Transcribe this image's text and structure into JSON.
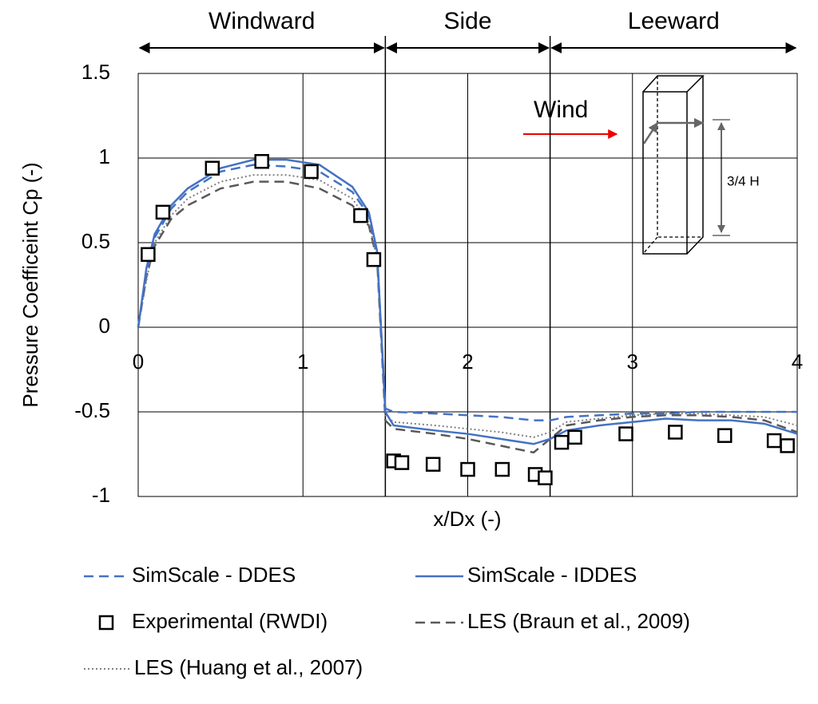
{
  "chart_data": {
    "type": "line",
    "xlabel": "x/Dx (-)",
    "ylabel": "Pressure Coefficeint Cp (-)",
    "xlim": [
      0,
      4
    ],
    "ylim": [
      -1,
      1.5
    ],
    "xticks": [
      0,
      1,
      2,
      3,
      4
    ],
    "yticks": [
      -1,
      -0.5,
      0,
      0.5,
      1,
      1.5
    ],
    "grid": true,
    "regions": [
      {
        "label": "Windward",
        "from": 0,
        "to": 1.5
      },
      {
        "label": "Side",
        "from": 1.5,
        "to": 2.5
      },
      {
        "label": "Leeward",
        "from": 2.5,
        "to": 4
      }
    ],
    "annotations": {
      "wind": "Wind",
      "height": "3/4 H"
    },
    "series": [
      {
        "name": "SimScale - DDES",
        "color": "#4472c4",
        "line_style": "dashed",
        "x": [
          0,
          0.05,
          0.1,
          0.2,
          0.3,
          0.5,
          0.7,
          0.9,
          1.1,
          1.3,
          1.4,
          1.45,
          1.5,
          1.55,
          1.8,
          2.0,
          2.2,
          2.4,
          2.5,
          2.6,
          2.8,
          3.0,
          3.2,
          3.4,
          3.6,
          3.8,
          4.0
        ],
        "values": [
          0.0,
          0.33,
          0.53,
          0.7,
          0.8,
          0.92,
          0.96,
          0.95,
          0.92,
          0.8,
          0.66,
          0.43,
          -0.48,
          -0.5,
          -0.51,
          -0.52,
          -0.53,
          -0.55,
          -0.55,
          -0.53,
          -0.52,
          -0.51,
          -0.51,
          -0.5,
          -0.5,
          -0.5,
          -0.5
        ]
      },
      {
        "name": "SimScale - IDDES",
        "color": "#4472c4",
        "line_style": "solid",
        "x": [
          0,
          0.05,
          0.1,
          0.2,
          0.3,
          0.5,
          0.7,
          0.9,
          1.1,
          1.3,
          1.4,
          1.45,
          1.5,
          1.55,
          1.8,
          2.0,
          2.2,
          2.4,
          2.5,
          2.6,
          2.8,
          3.0,
          3.2,
          3.4,
          3.6,
          3.8,
          4.0
        ],
        "values": [
          0.0,
          0.35,
          0.55,
          0.72,
          0.82,
          0.94,
          0.99,
          0.99,
          0.96,
          0.83,
          0.68,
          0.45,
          -0.5,
          -0.58,
          -0.61,
          -0.63,
          -0.66,
          -0.69,
          -0.66,
          -0.61,
          -0.58,
          -0.56,
          -0.54,
          -0.55,
          -0.55,
          -0.57,
          -0.63
        ]
      },
      {
        "name": "Experimental (RWDI)",
        "color": "#000000",
        "line_style": "none",
        "marker": "square",
        "x": [
          0.06,
          0.15,
          0.45,
          0.75,
          1.05,
          1.35,
          1.43,
          1.55,
          1.6,
          1.79,
          2.0,
          2.21,
          2.41,
          2.47,
          2.57,
          2.65,
          2.96,
          3.26,
          3.56,
          3.86,
          3.94
        ],
        "values": [
          0.43,
          0.68,
          0.94,
          0.98,
          0.92,
          0.66,
          0.4,
          -0.79,
          -0.8,
          -0.81,
          -0.84,
          -0.84,
          -0.87,
          -0.89,
          -0.68,
          -0.65,
          -0.63,
          -0.62,
          -0.64,
          -0.67,
          -0.7
        ]
      },
      {
        "name": "LES (Braun et al., 2009)",
        "color": "#595959",
        "line_style": "dashed",
        "x": [
          0,
          0.05,
          0.1,
          0.2,
          0.3,
          0.5,
          0.7,
          0.9,
          1.1,
          1.3,
          1.4,
          1.45,
          1.5,
          1.55,
          1.8,
          2.0,
          2.2,
          2.4,
          2.5,
          2.6,
          2.8,
          3.0,
          3.2,
          3.4,
          3.6,
          3.8,
          4.0
        ],
        "values": [
          0.0,
          0.3,
          0.48,
          0.64,
          0.72,
          0.82,
          0.86,
          0.86,
          0.82,
          0.72,
          0.6,
          0.4,
          -0.55,
          -0.6,
          -0.63,
          -0.66,
          -0.7,
          -0.74,
          -0.66,
          -0.58,
          -0.55,
          -0.53,
          -0.52,
          -0.52,
          -0.53,
          -0.55,
          -0.62
        ]
      },
      {
        "name": "LES (Huang et al., 2007)",
        "color": "#808080",
        "line_style": "dotted",
        "x": [
          0,
          0.05,
          0.1,
          0.2,
          0.3,
          0.5,
          0.7,
          0.9,
          1.1,
          1.3,
          1.4,
          1.45,
          1.5,
          1.55,
          1.8,
          2.0,
          2.2,
          2.4,
          2.5,
          2.6,
          2.8,
          3.0,
          3.2,
          3.4,
          3.6,
          3.8,
          4.0
        ],
        "values": [
          0.0,
          0.28,
          0.5,
          0.66,
          0.76,
          0.86,
          0.9,
          0.9,
          0.87,
          0.76,
          0.62,
          0.4,
          -0.52,
          -0.56,
          -0.58,
          -0.6,
          -0.62,
          -0.65,
          -0.62,
          -0.56,
          -0.54,
          -0.52,
          -0.51,
          -0.51,
          -0.52,
          -0.53,
          -0.58
        ]
      }
    ]
  }
}
